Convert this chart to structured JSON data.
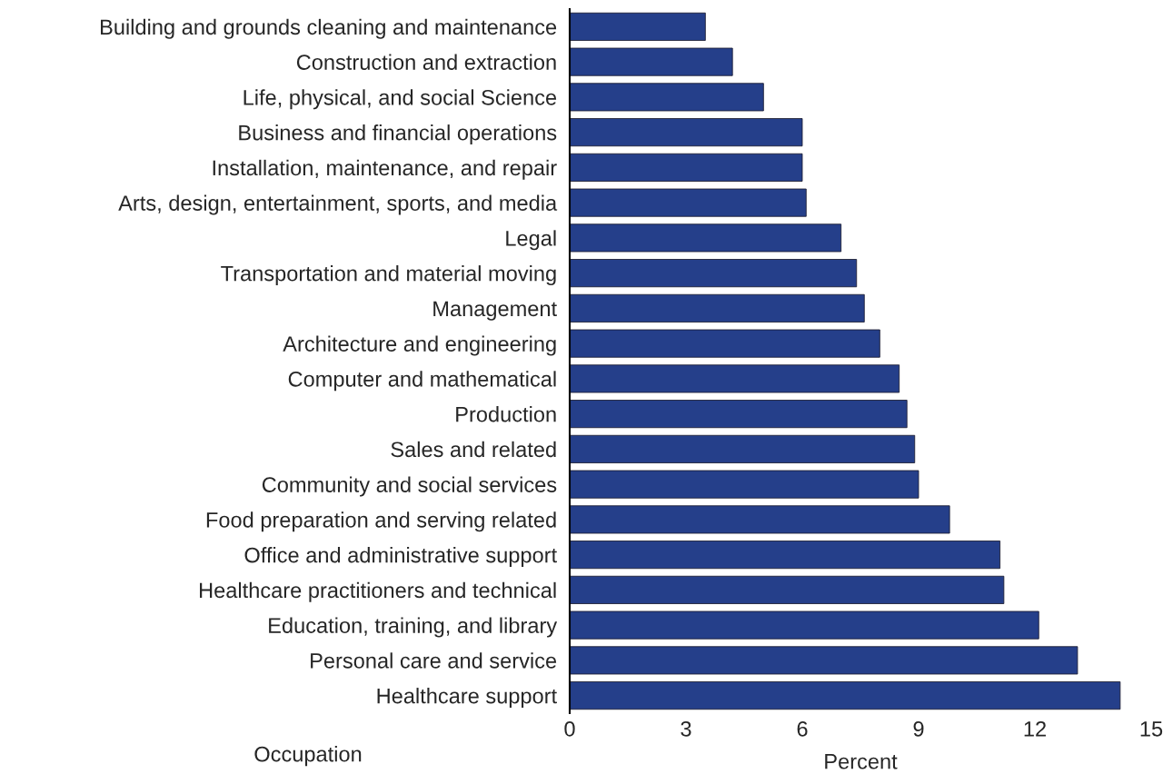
{
  "chart_data": {
    "type": "bar",
    "orientation": "horizontal",
    "xlabel": "Percent",
    "ylabel": "Occupation",
    "categories": [
      "Building and grounds cleaning and maintenance",
      "Construction and extraction",
      "Life, physical, and social Science",
      "Business and financial operations",
      "Installation, maintenance, and repair",
      "Arts, design, entertainment, sports, and media",
      "Legal",
      "Transportation and material moving",
      "Management",
      "Architecture and engineering",
      "Computer and mathematical",
      "Production",
      "Sales and related",
      "Community and social services",
      "Food preparation and serving related",
      "Office and administrative support",
      "Healthcare practitioners and technical",
      "Education, training, and library",
      "Personal care and service",
      "Healthcare support"
    ],
    "values": [
      3.5,
      4.2,
      5.0,
      6.0,
      6.0,
      6.1,
      7.0,
      7.4,
      7.6,
      8.0,
      8.5,
      8.7,
      8.9,
      9.0,
      9.8,
      11.1,
      11.2,
      12.1,
      13.1,
      14.2
    ],
    "color": "#253f8a",
    "xlim": [
      0,
      15
    ],
    "xticks": [
      0,
      3,
      6,
      9,
      12,
      15
    ],
    "grid": false,
    "legend": false
  }
}
